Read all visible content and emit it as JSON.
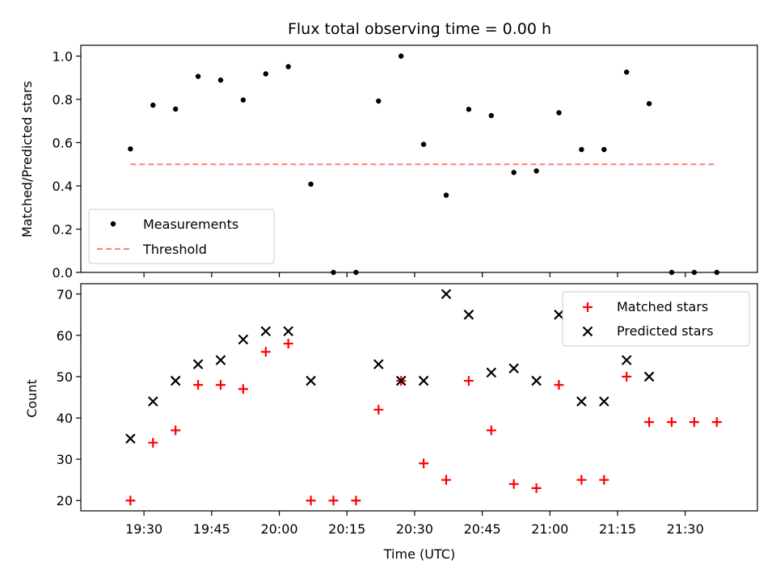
{
  "chart_data": [
    {
      "type": "scatter",
      "title": "Flux total observing time = 0.00 h",
      "xlabel": "",
      "ylabel": "Matched/Predicted stars",
      "ylim": [
        0,
        1.05
      ],
      "yticks": [
        "0.0",
        "0.2",
        "0.4",
        "0.6",
        "0.8",
        "1.0"
      ],
      "ytick_values": [
        0,
        0.2,
        0.4,
        0.6,
        0.8,
        1.0
      ],
      "x": [
        "19:27",
        "19:32",
        "19:37",
        "19:42",
        "19:47",
        "19:52",
        "19:57",
        "20:02",
        "20:07",
        "20:12",
        "20:17",
        "20:22",
        "20:27",
        "20:32",
        "20:37",
        "20:42",
        "20:47",
        "20:52",
        "20:57",
        "21:02",
        "21:07",
        "21:12",
        "21:17",
        "21:22",
        "21:27",
        "21:32",
        "21:37"
      ],
      "series": [
        {
          "name": "Measurements",
          "marker": "dot",
          "color": "#000000",
          "values": [
            0.571,
            0.773,
            0.755,
            0.906,
            0.889,
            0.797,
            0.918,
            0.951,
            0.408,
            0.0,
            0.0,
            0.792,
            1.0,
            0.592,
            0.357,
            0.754,
            0.725,
            0.462,
            0.469,
            0.738,
            0.568,
            0.568,
            0.926,
            0.78,
            0.0,
            0.0,
            0.0
          ]
        },
        {
          "name": "Threshold",
          "type": "line",
          "style": "dashed",
          "color": "#ff7f7f",
          "x": [
            "19:27",
            "21:37"
          ],
          "values": [
            0.5,
            0.5
          ]
        }
      ],
      "legend": "lower-left"
    },
    {
      "type": "scatter",
      "xlabel": "Time (UTC)",
      "ylabel": "Count",
      "ylim": [
        17.5,
        72.5
      ],
      "yticks": [
        "20",
        "30",
        "40",
        "50",
        "60",
        "70"
      ],
      "ytick_values": [
        20,
        30,
        40,
        50,
        60,
        70
      ],
      "xlim": [
        "19:16",
        "21:46"
      ],
      "xticks": [
        "19:30",
        "19:45",
        "20:00",
        "20:15",
        "20:30",
        "20:45",
        "21:00",
        "21:15",
        "21:30"
      ],
      "x": [
        "19:27",
        "19:32",
        "19:37",
        "19:42",
        "19:47",
        "19:52",
        "19:57",
        "20:02",
        "20:07",
        "20:12",
        "20:17",
        "20:22",
        "20:27",
        "20:32",
        "20:37",
        "20:42",
        "20:47",
        "20:52",
        "20:57",
        "21:02",
        "21:07",
        "21:12",
        "21:17",
        "21:22",
        "21:27",
        "21:32",
        "21:37"
      ],
      "series": [
        {
          "name": "Matched stars",
          "marker": "plus",
          "color": "#ff0000",
          "values": [
            20,
            34,
            37,
            48,
            48,
            47,
            56,
            58,
            20,
            20,
            20,
            42,
            49,
            29,
            25,
            49,
            37,
            24,
            23,
            48,
            25,
            25,
            50,
            39,
            39,
            39,
            39
          ]
        },
        {
          "name": "Predicted stars",
          "marker": "x",
          "color": "#000000",
          "values": [
            35,
            44,
            49,
            53,
            54,
            59,
            61,
            61,
            49,
            null,
            null,
            53,
            49,
            49,
            70,
            65,
            51,
            52,
            49,
            65,
            44,
            44,
            54,
            50,
            null,
            null,
            null
          ]
        }
      ],
      "legend": "upper-right"
    }
  ]
}
